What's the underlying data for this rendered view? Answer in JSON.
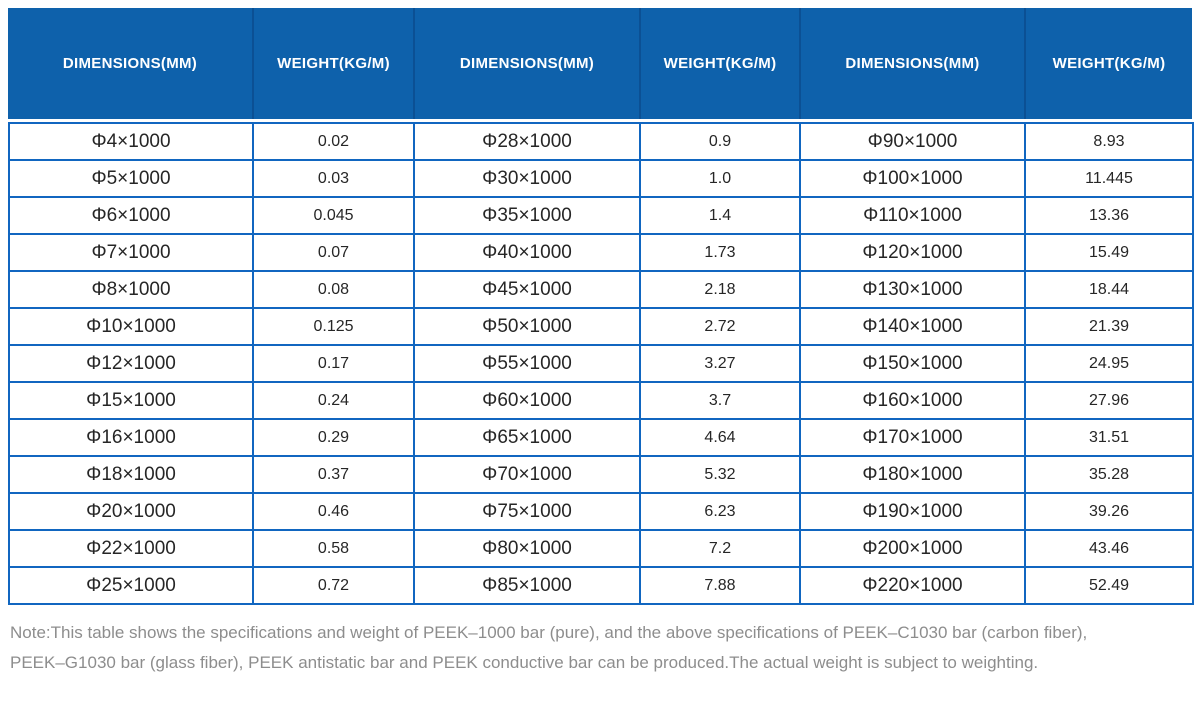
{
  "colors": {
    "header_bg": "#0e61ab",
    "header_divider": "#0b5094",
    "grid_border": "#1166c0",
    "cell_text": "#262626",
    "note_text": "#8d8d8d"
  },
  "table": {
    "columns": [
      "DIMENSIONS(MM)",
      "WEIGHT(KG/M)",
      "DIMENSIONS(MM)",
      "WEIGHT(KG/M)",
      "DIMENSIONS(MM)",
      "WEIGHT(KG/M)"
    ],
    "rows": [
      [
        "Φ4×1000",
        "0.02",
        "Φ28×1000",
        "0.9",
        "Φ90×1000",
        "8.93"
      ],
      [
        "Φ5×1000",
        "0.03",
        "Φ30×1000",
        "1.0",
        "Φ100×1000",
        "11.445"
      ],
      [
        "Φ6×1000",
        "0.045",
        "Φ35×1000",
        "1.4",
        "Φ110×1000",
        "13.36"
      ],
      [
        "Φ7×1000",
        "0.07",
        "Φ40×1000",
        "1.73",
        "Φ120×1000",
        "15.49"
      ],
      [
        "Φ8×1000",
        "0.08",
        "Φ45×1000",
        "2.18",
        "Φ130×1000",
        "18.44"
      ],
      [
        "Φ10×1000",
        "0.125",
        "Φ50×1000",
        "2.72",
        "Φ140×1000",
        "21.39"
      ],
      [
        "Φ12×1000",
        "0.17",
        "Φ55×1000",
        "3.27",
        "Φ150×1000",
        "24.95"
      ],
      [
        "Φ15×1000",
        "0.24",
        "Φ60×1000",
        "3.7",
        "Φ160×1000",
        "27.96"
      ],
      [
        "Φ16×1000",
        "0.29",
        "Φ65×1000",
        "4.64",
        "Φ170×1000",
        "31.51"
      ],
      [
        "Φ18×1000",
        "0.37",
        "Φ70×1000",
        "5.32",
        "Φ180×1000",
        "35.28"
      ],
      [
        "Φ20×1000",
        "0.46",
        "Φ75×1000",
        "6.23",
        "Φ190×1000",
        "39.26"
      ],
      [
        "Φ22×1000",
        "0.58",
        "Φ80×1000",
        "7.2",
        "Φ200×1000",
        "43.46"
      ],
      [
        "Φ25×1000",
        "0.72",
        "Φ85×1000",
        "7.88",
        "Φ220×1000",
        "52.49"
      ]
    ]
  },
  "note": {
    "line1": "Note:This table shows the specifications and weight of PEEK–1000 bar (pure), and the above specifications of PEEK–C1030 bar (carbon fiber),",
    "line2": "PEEK–G1030 bar (glass fiber), PEEK antistatic bar and PEEK conductive bar can be produced.The actual weight is subject to weighting."
  }
}
